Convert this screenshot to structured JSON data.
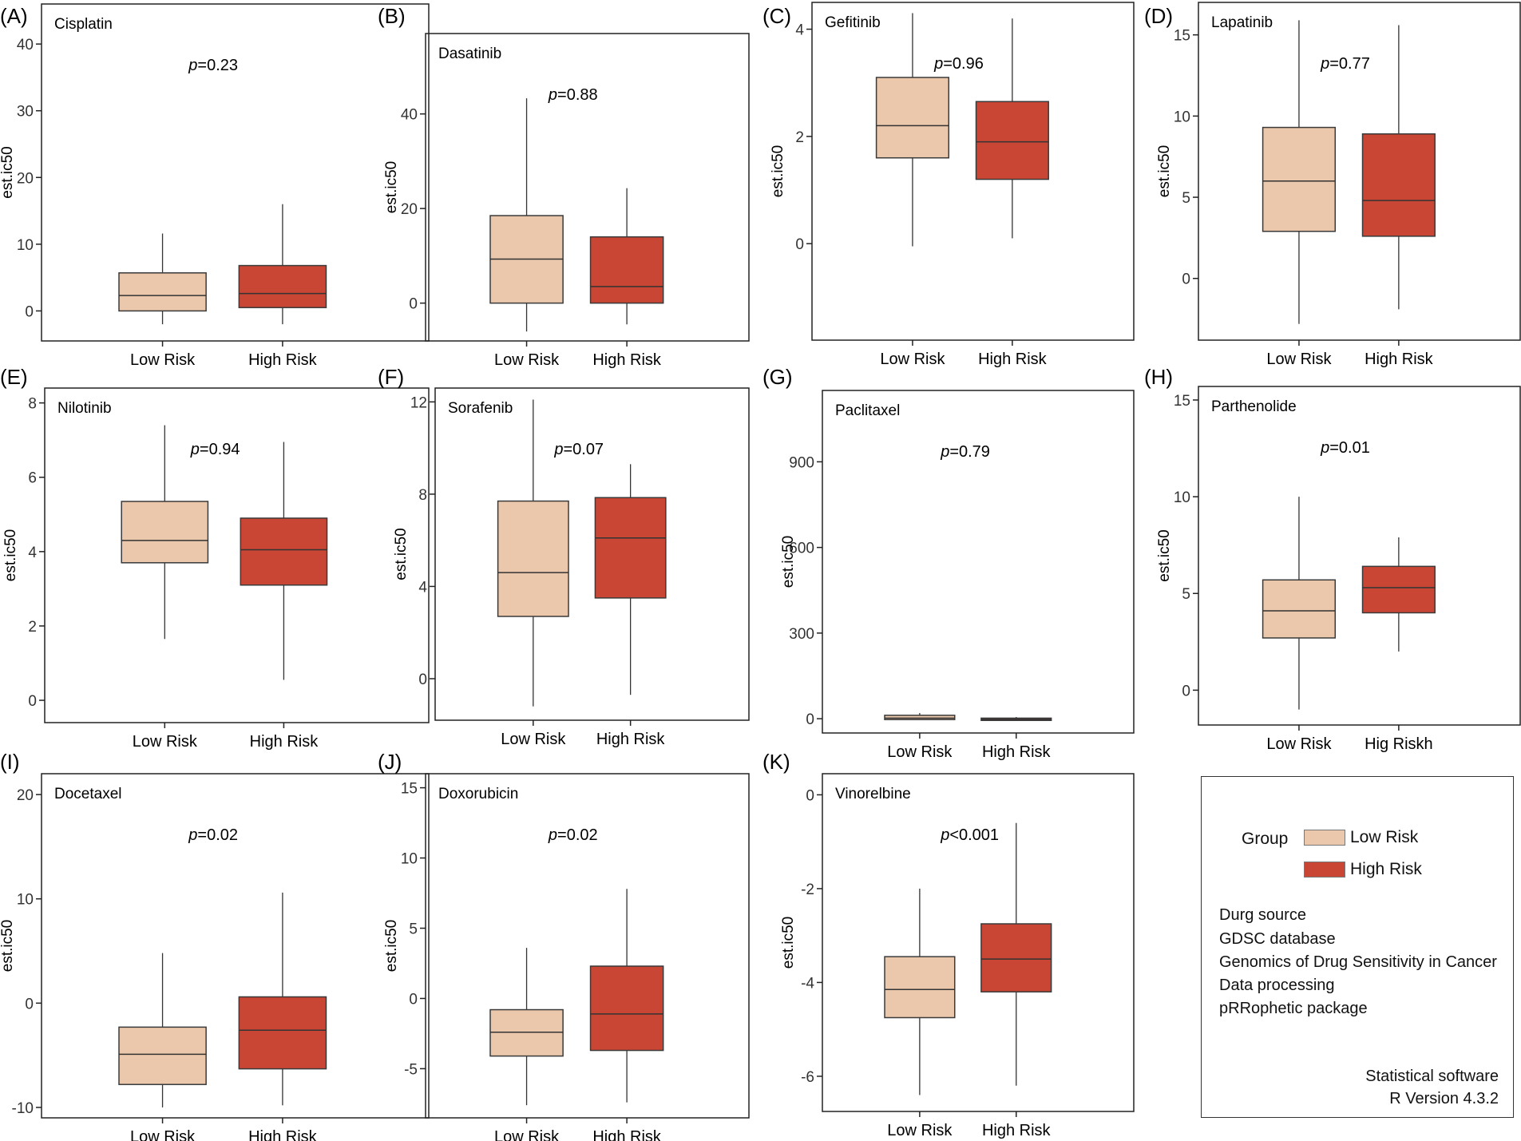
{
  "colors": {
    "low": "#EBC8AB",
    "high": "#C94634",
    "outline": "#3a3a3a"
  },
  "legend": {
    "title": "Group",
    "low_label": "Low Risk",
    "high_label": "High Risk",
    "notes": [
      "Durg source",
      "GDSC database",
      "Genomics of Drug Sensitivity in Cancer",
      "Data processing",
      "pRRophetic package"
    ],
    "software_title": "Statistical software",
    "software_version": "R Version 4.3.2"
  },
  "chart_data": [
    {
      "type": "box",
      "panel": "(A)",
      "title": "Cisplatin",
      "ylabel": "est.ic50",
      "pvalue": "=0.23",
      "categories": [
        "Low Risk",
        "High Risk"
      ],
      "ylim": [
        -4.5,
        46
      ],
      "yticks": [
        0,
        10,
        20,
        30,
        40
      ],
      "boxes": [
        {
          "whisker_low": -2,
          "q1": 0,
          "median": 2.3,
          "q3": 5.7,
          "whisker_high": 11.6
        },
        {
          "whisker_low": -2,
          "q1": 0.5,
          "median": 2.6,
          "q3": 6.8,
          "whisker_high": 16
        }
      ]
    },
    {
      "type": "box",
      "panel": "(B)",
      "title": "Dasatinib",
      "ylabel": "est.ic50",
      "pvalue": "=0.88",
      "categories": [
        "Low Risk",
        "High Risk"
      ],
      "ylim": [
        -8,
        57
      ],
      "yticks": [
        0,
        20,
        40
      ],
      "boxes": [
        {
          "whisker_low": -6,
          "q1": 0,
          "median": 9.3,
          "q3": 18.5,
          "whisker_high": 43.3
        },
        {
          "whisker_low": -4.5,
          "q1": 0,
          "median": 3.5,
          "q3": 14,
          "whisker_high": 24.3
        }
      ]
    },
    {
      "type": "box",
      "panel": "(C)",
      "title": "Gefitinib",
      "ylabel": "est.ic50",
      "pvalue": "=0.96",
      "categories": [
        "Low Risk",
        "High Risk"
      ],
      "ylim": [
        -1.8,
        4.5
      ],
      "yticks": [
        0,
        2,
        4
      ],
      "boxes": [
        {
          "whisker_low": -0.05,
          "q1": 1.6,
          "median": 2.2,
          "q3": 3.1,
          "whisker_high": 4.3
        },
        {
          "whisker_low": 0.1,
          "q1": 1.2,
          "median": 1.9,
          "q3": 2.65,
          "whisker_high": 4.2
        }
      ]
    },
    {
      "type": "box",
      "panel": "(D)",
      "title": "Lapatinib",
      "ylabel": "est.ic50",
      "pvalue": "=0.77",
      "categories": [
        "Low Risk",
        "High Risk"
      ],
      "ylim": [
        -3.8,
        17
      ],
      "yticks": [
        0,
        5,
        10,
        15
      ],
      "boxes": [
        {
          "whisker_low": -2.8,
          "q1": 2.9,
          "median": 6,
          "q3": 9.3,
          "whisker_high": 15.9
        },
        {
          "whisker_low": -1.9,
          "q1": 2.6,
          "median": 4.8,
          "q3": 8.9,
          "whisker_high": 15.6
        }
      ]
    },
    {
      "type": "box",
      "panel": "(E)",
      "title": "Nilotinib",
      "ylabel": "est.ic50",
      "pvalue": "=0.94",
      "categories": [
        "Low Risk",
        "High Risk"
      ],
      "ylim": [
        -0.6,
        8.4
      ],
      "yticks": [
        0,
        2,
        4,
        6,
        8
      ],
      "boxes": [
        {
          "whisker_low": 1.65,
          "q1": 3.7,
          "median": 4.3,
          "q3": 5.35,
          "whisker_high": 7.4
        },
        {
          "whisker_low": 0.55,
          "q1": 3.1,
          "median": 4.05,
          "q3": 4.9,
          "whisker_high": 6.95
        }
      ]
    },
    {
      "type": "box",
      "panel": "(F)",
      "title": "Sorafenib",
      "ylabel": "est.ic50",
      "pvalue": "=0.07",
      "categories": [
        "Low Risk",
        "High Risk"
      ],
      "ylim": [
        -1.8,
        12.6
      ],
      "yticks": [
        0,
        4,
        8,
        12
      ],
      "boxes": [
        {
          "whisker_low": -1.2,
          "q1": 2.7,
          "median": 4.6,
          "q3": 7.7,
          "whisker_high": 12.1
        },
        {
          "whisker_low": -0.7,
          "q1": 3.5,
          "median": 6.1,
          "q3": 7.85,
          "whisker_high": 9.3
        }
      ]
    },
    {
      "type": "box",
      "panel": "(G)",
      "title": "Paclitaxel",
      "ylabel": "est.ic50",
      "pvalue": "=0.79",
      "categories": [
        "Low Risk",
        "High Risk"
      ],
      "ylim": [
        -50,
        1150
      ],
      "yticks": [
        0,
        300,
        600,
        900
      ],
      "boxes": [
        {
          "whisker_low": -3,
          "q1": -3,
          "median": 2,
          "q3": 12,
          "whisker_high": 20
        },
        {
          "whisker_low": -6,
          "q1": -6,
          "median": -2,
          "q3": 2,
          "whisker_high": 6
        }
      ]
    },
    {
      "type": "box",
      "panel": "(H)",
      "title": "Parthenolide",
      "ylabel": "est.ic50",
      "pvalue": "=0.01",
      "categories": [
        "Low Risk",
        "Hig Riskh"
      ],
      "ylim": [
        -1.8,
        15.7
      ],
      "yticks": [
        0,
        5,
        10,
        15
      ],
      "boxes": [
        {
          "whisker_low": -1,
          "q1": 2.7,
          "median": 4.1,
          "q3": 5.7,
          "whisker_high": 10
        },
        {
          "whisker_low": 2,
          "q1": 4,
          "median": 5.3,
          "q3": 6.4,
          "whisker_high": 7.9
        }
      ]
    },
    {
      "type": "box",
      "panel": "(I)",
      "title": "Docetaxel",
      "ylabel": "est.ic50",
      "pvalue": "=0.02",
      "categories": [
        "Low Risk",
        "High Risk"
      ],
      "ylim": [
        -11,
        22
      ],
      "yticks": [
        -10,
        0,
        10,
        20
      ],
      "boxes": [
        {
          "whisker_low": -10,
          "q1": -7.8,
          "median": -4.9,
          "q3": -2.3,
          "whisker_high": 4.8
        },
        {
          "whisker_low": -9.8,
          "q1": -6.3,
          "median": -2.6,
          "q3": 0.6,
          "whisker_high": 10.6
        }
      ]
    },
    {
      "type": "box",
      "panel": "(J)",
      "title": "Doxorubicin",
      "ylabel": "est.ic50",
      "pvalue": "=0.02",
      "categories": [
        "Low Risk",
        "High Risk"
      ],
      "ylim": [
        -8.5,
        16
      ],
      "yticks": [
        -5,
        0,
        5,
        10,
        15
      ],
      "boxes": [
        {
          "whisker_low": -7.6,
          "q1": -4.1,
          "median": -2.4,
          "q3": -0.8,
          "whisker_high": 3.6
        },
        {
          "whisker_low": -7.4,
          "q1": -3.7,
          "median": -1.1,
          "q3": 2.3,
          "whisker_high": 7.8
        }
      ]
    },
    {
      "type": "box",
      "panel": "(K)",
      "title": "Vinorelbine",
      "ylabel": "est.ic50",
      "pvalue": "<0.001",
      "categories": [
        "Low Risk",
        "High Risk"
      ],
      "ylim": [
        -6.75,
        0.45
      ],
      "yticks": [
        -6,
        -4,
        -2,
        0
      ],
      "boxes": [
        {
          "whisker_low": -6.4,
          "q1": -4.75,
          "median": -4.15,
          "q3": -3.45,
          "whisker_high": -2
        },
        {
          "whisker_low": -6.2,
          "q1": -4.2,
          "median": -3.5,
          "q3": -2.75,
          "whisker_high": -0.6
        }
      ]
    }
  ]
}
